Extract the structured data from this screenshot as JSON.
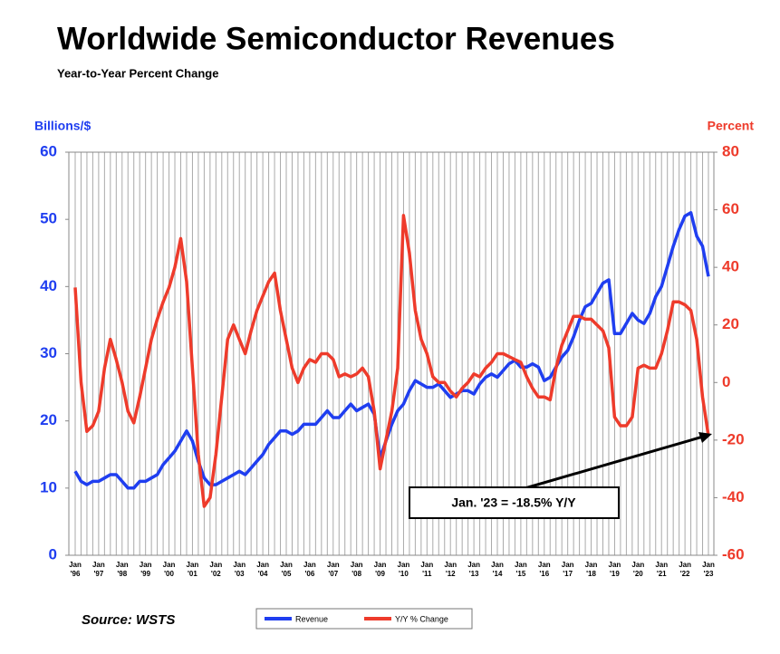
{
  "chart_data": {
    "type": "line",
    "title": "Worldwide Semiconductor Revenues",
    "subtitle": "Year-to-Year Percent Change",
    "y_label": "Billions/$",
    "y2_label": "Percent",
    "source": "Source: WSTS",
    "annotation": "Jan. '23 = -18.5% Y/Y",
    "categories": [
      "Jan '96",
      null,
      null,
      null,
      "Jan '97",
      null,
      null,
      null,
      "Jan '98",
      null,
      null,
      null,
      "Jan '99",
      null,
      null,
      null,
      "Jan '00",
      null,
      null,
      null,
      "Jan '01",
      null,
      null,
      null,
      "Jan '02",
      null,
      null,
      null,
      "Jan '03",
      null,
      null,
      null,
      "Jan '04",
      null,
      null,
      null,
      "Jan '05",
      null,
      null,
      null,
      "Jan '06",
      null,
      null,
      null,
      "Jan '07",
      null,
      null,
      null,
      "Jan '08",
      null,
      null,
      null,
      "Jan '09",
      null,
      null,
      null,
      "Jan '10",
      null,
      null,
      null,
      "Jan '11",
      null,
      null,
      null,
      "Jan '12",
      null,
      null,
      null,
      "Jan '13",
      null,
      null,
      null,
      "Jan '14",
      null,
      null,
      null,
      "Jan '15",
      null,
      null,
      null,
      "Jan '16",
      null,
      null,
      null,
      "Jan '17",
      null,
      null,
      null,
      "Jan '18",
      null,
      null,
      null,
      "Jan '19",
      null,
      null,
      null,
      "Jan '20",
      null,
      null,
      null,
      "Jan '21",
      null,
      null,
      null,
      "Jan '22",
      null,
      null,
      null,
      "Jan '23"
    ],
    "series": [
      {
        "name": "Revenue",
        "color": "#1f3ef0",
        "axis": "y",
        "values": [
          12.5,
          11,
          10.5,
          11,
          11,
          11.5,
          12,
          12,
          11,
          10,
          10,
          11,
          11,
          11.5,
          12,
          13.5,
          14.5,
          15.5,
          17,
          18.5,
          17,
          14,
          11.5,
          10.5,
          10.5,
          11,
          11.5,
          12,
          12.5,
          12,
          13,
          14,
          15,
          16.5,
          17.5,
          18.5,
          18.5,
          18,
          18.5,
          19.5,
          19.5,
          19.5,
          20.5,
          21.5,
          20.5,
          20.5,
          21.5,
          22.5,
          21.5,
          22,
          22.5,
          21,
          14.5,
          17,
          19.5,
          21.5,
          22.5,
          24.5,
          26,
          25.5,
          25,
          25,
          25.5,
          24.5,
          23.5,
          24,
          24.5,
          24.5,
          24,
          25.5,
          26.5,
          27,
          26.5,
          27.5,
          28.5,
          29,
          28,
          28,
          28.5,
          28,
          26,
          26.5,
          28,
          29.5,
          30.5,
          32.5,
          35,
          37,
          37.5,
          39,
          40.5,
          41,
          33,
          33,
          34.5,
          36,
          35,
          34.5,
          36,
          38.5,
          40,
          43,
          46,
          48.5,
          50.5,
          51,
          47.5,
          46,
          41.5
        ]
      },
      {
        "name": "Y/Y % Change",
        "color": "#ee3b2b",
        "axis": "y2",
        "values": [
          33,
          0,
          -17,
          -15,
          -10,
          5,
          15,
          8,
          0,
          -10,
          -14,
          -5,
          5,
          15,
          22,
          28,
          33,
          40,
          50,
          35,
          5,
          -25,
          -43,
          -40,
          -25,
          -5,
          15,
          20,
          15,
          10,
          18,
          25,
          30,
          35,
          38,
          25,
          15,
          5,
          0,
          5,
          8,
          7,
          10,
          10,
          8,
          2,
          3,
          2,
          3,
          5,
          2,
          -10,
          -30,
          -20,
          -10,
          5,
          58,
          45,
          25,
          15,
          10,
          2,
          0,
          0,
          -3,
          -5,
          -2,
          0,
          3,
          2,
          5,
          7,
          10,
          10,
          9,
          8,
          7,
          2,
          -2,
          -5,
          -5,
          -6,
          5,
          13,
          18,
          23,
          23,
          22,
          22,
          20,
          18,
          12,
          -12,
          -15,
          -15,
          -12,
          5,
          6,
          5,
          5,
          10,
          18,
          28,
          28,
          27,
          25,
          15,
          -5,
          -18.5
        ]
      }
    ],
    "ylim": [
      0,
      60
    ],
    "yticks": [
      0,
      10,
      20,
      30,
      40,
      50,
      60
    ],
    "y2lim": [
      -60,
      80
    ],
    "y2ticks": [
      -60,
      -40,
      -20,
      0,
      20,
      40,
      60,
      80
    ],
    "grid": "vertical"
  }
}
